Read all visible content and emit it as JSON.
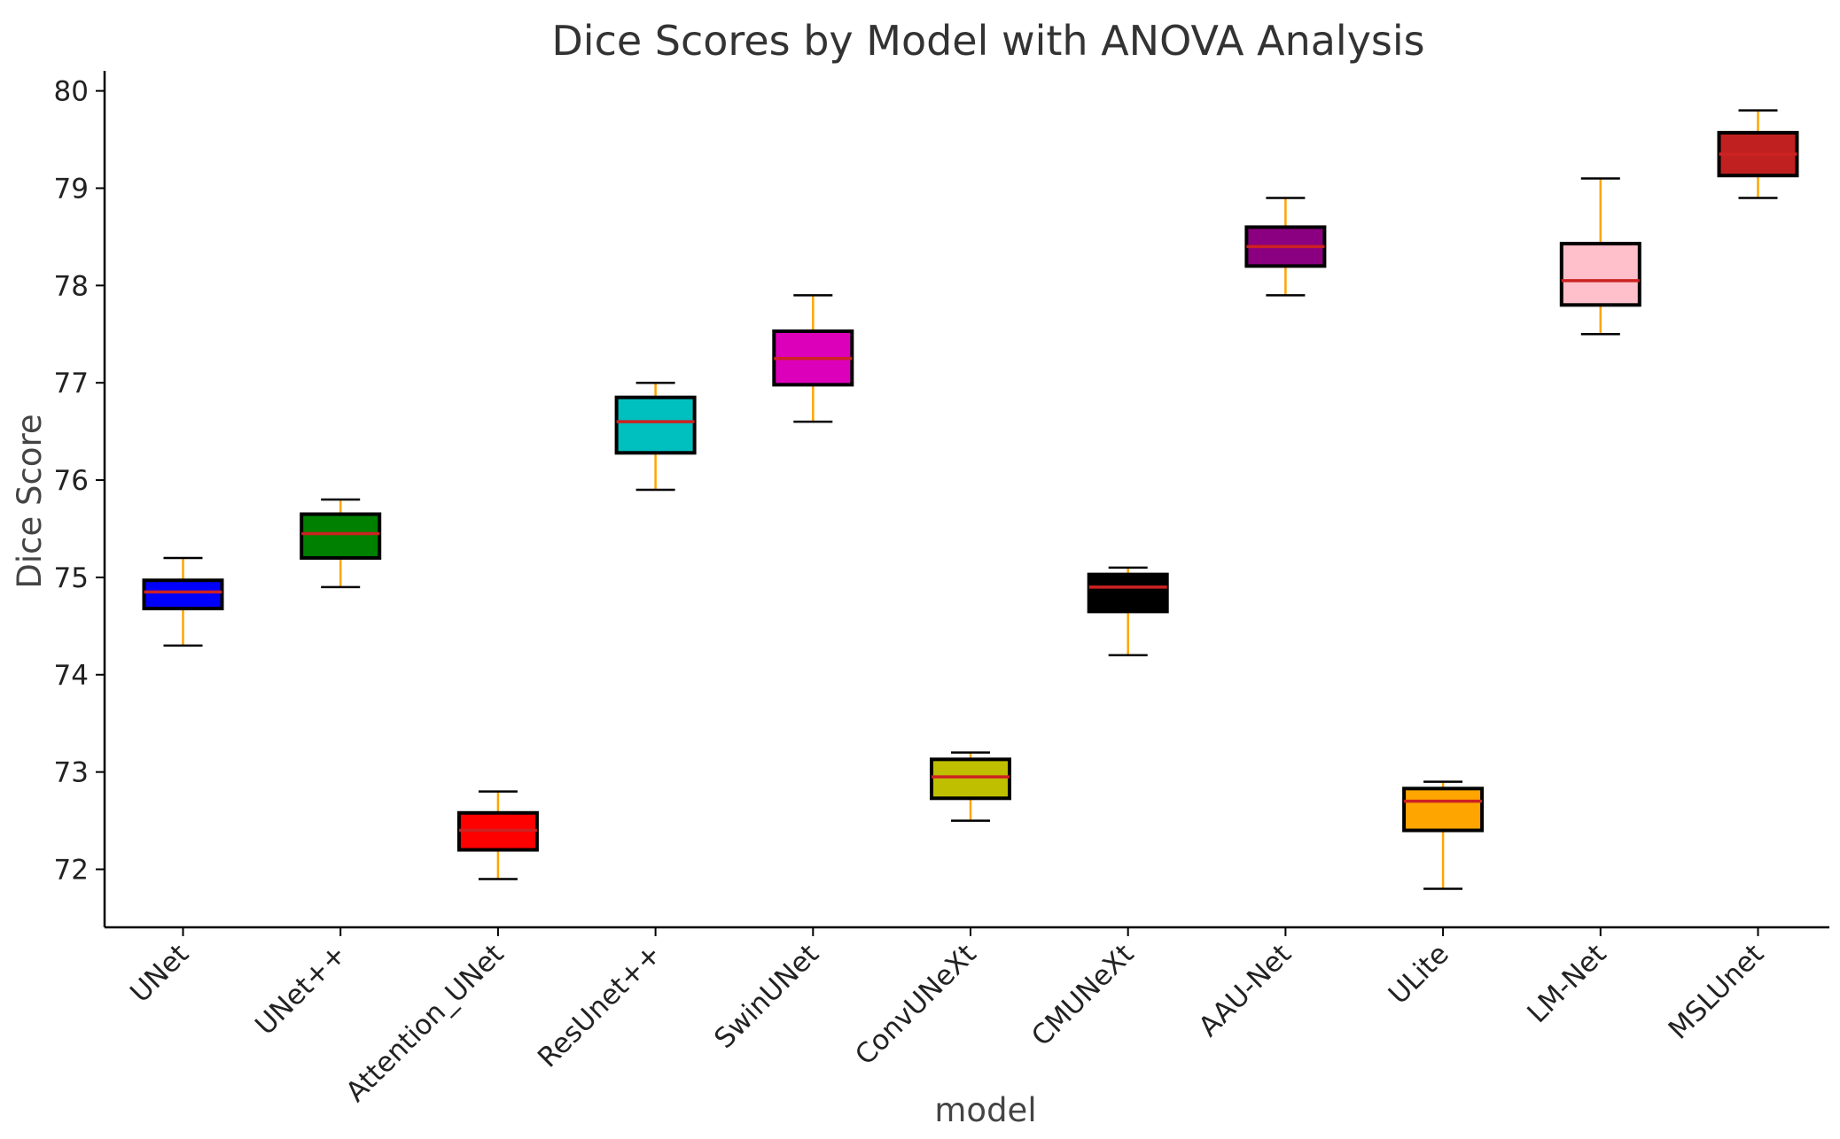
{
  "chart_data": {
    "type": "box",
    "title": "Dice Scores by Model with ANOVA Analysis",
    "xlabel": "model",
    "ylabel": "Dice Score",
    "ylim": [
      71.4,
      80.2
    ],
    "yticks": [
      72,
      73,
      74,
      75,
      76,
      77,
      78,
      79,
      80
    ],
    "grid": false,
    "whisker_color": "#FFA500",
    "median_color": "#CC2222",
    "box_edge_color": "#000000",
    "boxes": [
      {
        "name": "UNet",
        "color": "#0000FF",
        "min": 74.3,
        "q1": 74.68,
        "median": 74.85,
        "q3": 74.97,
        "max": 75.2
      },
      {
        "name": "UNet++",
        "color": "#008000",
        "min": 74.9,
        "q1": 75.2,
        "median": 75.45,
        "q3": 75.65,
        "max": 75.8
      },
      {
        "name": "Attention_UNet",
        "color": "#FF0000",
        "min": 71.9,
        "q1": 72.2,
        "median": 72.4,
        "q3": 72.58,
        "max": 72.8
      },
      {
        "name": "ResUnet++",
        "color": "#00BFBF",
        "min": 75.9,
        "q1": 76.28,
        "median": 76.6,
        "q3": 76.85,
        "max": 77.0
      },
      {
        "name": "SwinUNet",
        "color": "#DD00BB",
        "min": 76.6,
        "q1": 76.98,
        "median": 77.25,
        "q3": 77.53,
        "max": 77.9
      },
      {
        "name": "ConvUNeXt",
        "color": "#BFBF00",
        "min": 72.5,
        "q1": 72.73,
        "median": 72.95,
        "q3": 73.13,
        "max": 73.2
      },
      {
        "name": "CMUNeXt",
        "color": "#000000",
        "min": 74.2,
        "q1": 74.65,
        "median": 74.9,
        "q3": 75.03,
        "max": 75.1
      },
      {
        "name": "AAU-Net",
        "color": "#8B0080",
        "min": 77.9,
        "q1": 78.2,
        "median": 78.4,
        "q3": 78.6,
        "max": 78.9
      },
      {
        "name": "ULite",
        "color": "#FFA500",
        "min": 71.8,
        "q1": 72.4,
        "median": 72.7,
        "q3": 72.83,
        "max": 72.9
      },
      {
        "name": "LM-Net",
        "color": "#FFC0CB",
        "min": 77.5,
        "q1": 77.8,
        "median": 78.05,
        "q3": 78.43,
        "max": 79.1
      },
      {
        "name": "MSLUnet",
        "color": "#C02020",
        "min": 78.9,
        "q1": 79.13,
        "median": 79.35,
        "q3": 79.57,
        "max": 79.8
      }
    ]
  }
}
